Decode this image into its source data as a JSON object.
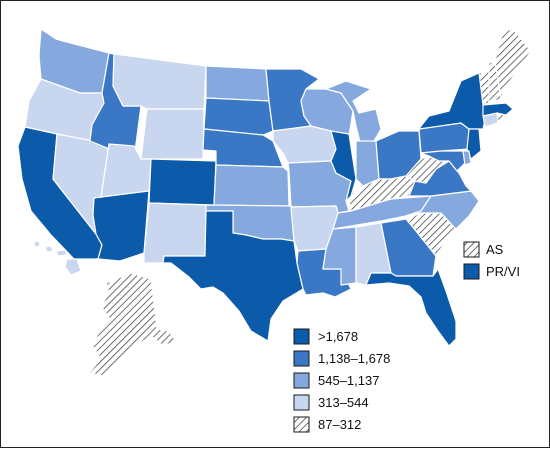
{
  "colors": {
    "c1": "#0c5aaa",
    "c2": "#3a78c6",
    "c3": "#85a9de",
    "c4": "#c8d6f0",
    "c5": "hatch"
  },
  "legend": {
    "items": [
      {
        "label": ">1,678",
        "cls": "c1"
      },
      {
        "label": "1,138–1,678",
        "cls": "c2"
      },
      {
        "label": "545–1,137",
        "cls": "c3"
      },
      {
        "label": "313–544",
        "cls": "c4"
      },
      {
        "label": "87–312",
        "cls": "c5"
      }
    ]
  },
  "territories": {
    "as": {
      "label": "AS",
      "cls": "c5"
    },
    "prvi": {
      "label": "PR/VI",
      "cls": "c1"
    }
  },
  "states": {
    "WA": "c3",
    "OR": "c4",
    "CA": "c1",
    "NV": "c4",
    "ID": "c2",
    "MT": "c4",
    "WY": "c4",
    "UT": "c4",
    "AZ": "c1",
    "CO": "c1",
    "NM": "c4",
    "ND": "c3",
    "SD": "c2",
    "NE": "c2",
    "KS": "c3",
    "OK": "c3",
    "TX": "c1",
    "MN": "c2",
    "IA": "c4",
    "MO": "c3",
    "AR": "c4",
    "LA": "c2",
    "WI": "c3",
    "IL": "c1",
    "MI": "c3",
    "IN": "c3",
    "OH": "c2",
    "KY": "c5",
    "TN": "c3",
    "MS": "c3",
    "AL": "c4",
    "GA": "c2",
    "FL": "c1",
    "SC": "c5",
    "NC": "c3",
    "VA": "c2",
    "WV": "c5",
    "PA": "c2",
    "NY": "c1",
    "NJ": "c1",
    "DE": "c3",
    "MD": "c2",
    "CT": "c4",
    "RI": "c5",
    "MA": "c1",
    "VT": "c5",
    "NH": "c5",
    "ME": "c5",
    "AK": "c5",
    "HI": "c4"
  }
}
